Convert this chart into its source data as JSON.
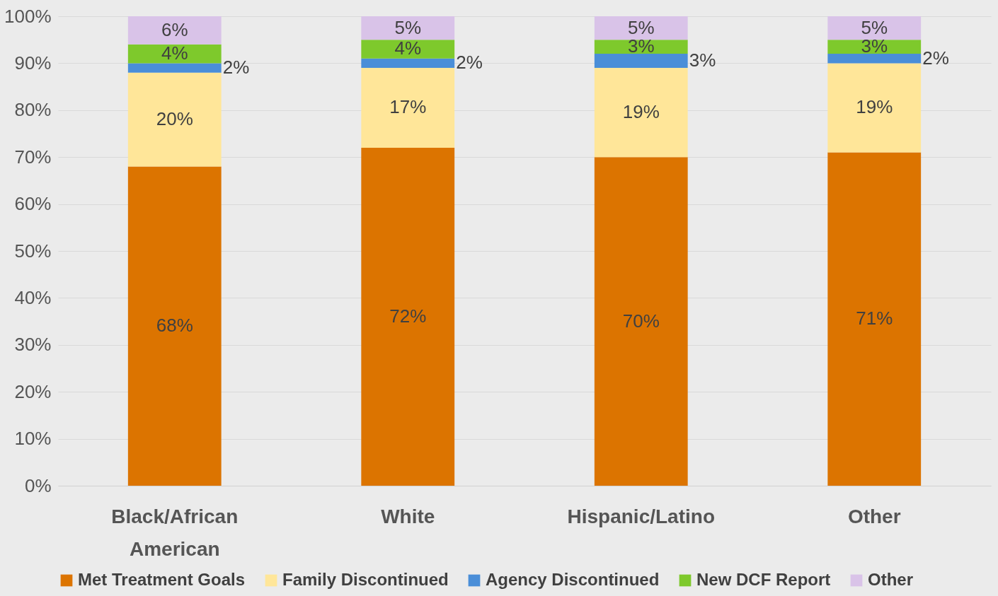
{
  "chart_data": {
    "type": "bar",
    "stacked": true,
    "grid": "y",
    "legend": "bottom",
    "categories": [
      "Black/African American",
      "White",
      "Hispanic/Latino",
      "Other"
    ],
    "series": [
      {
        "name": "Met Treatment Goals",
        "color": "#dc7400",
        "values": [
          68,
          72,
          70,
          71
        ],
        "value_labels": [
          "68%",
          "72%",
          "70%",
          "71%"
        ]
      },
      {
        "name": "Family Discontinued",
        "color": "#ffe699",
        "values": [
          20,
          17,
          19,
          19
        ],
        "value_labels": [
          "20%",
          "17%",
          "19%",
          "19%"
        ]
      },
      {
        "name": "Agency Discontinued",
        "color": "#4a8ed8",
        "values": [
          2,
          2,
          3,
          2
        ],
        "value_labels": [
          "2%",
          "2%",
          "3%",
          "2%"
        ]
      },
      {
        "name": "New DCF Report",
        "color": "#7ec92c",
        "values": [
          4,
          4,
          3,
          3
        ],
        "value_labels": [
          "4%",
          "4%",
          "3%",
          "3%"
        ]
      },
      {
        "name": "Other",
        "color": "#d9c3e8",
        "values": [
          6,
          5,
          5,
          5
        ],
        "value_labels": [
          "6%",
          "5%",
          "5%",
          "5%"
        ]
      }
    ],
    "ylim": [
      0,
      100
    ],
    "yticks": [
      {
        "value": 0,
        "label": "0%"
      },
      {
        "value": 10,
        "label": "10%"
      },
      {
        "value": 20,
        "label": "20%"
      },
      {
        "value": 30,
        "label": "30%"
      },
      {
        "value": 40,
        "label": "40%"
      },
      {
        "value": 50,
        "label": "50%"
      },
      {
        "value": 60,
        "label": "60%"
      },
      {
        "value": 70,
        "label": "70%"
      },
      {
        "value": 80,
        "label": "80%"
      },
      {
        "value": 90,
        "label": "90%"
      },
      {
        "value": 100,
        "label": "100%"
      }
    ]
  }
}
